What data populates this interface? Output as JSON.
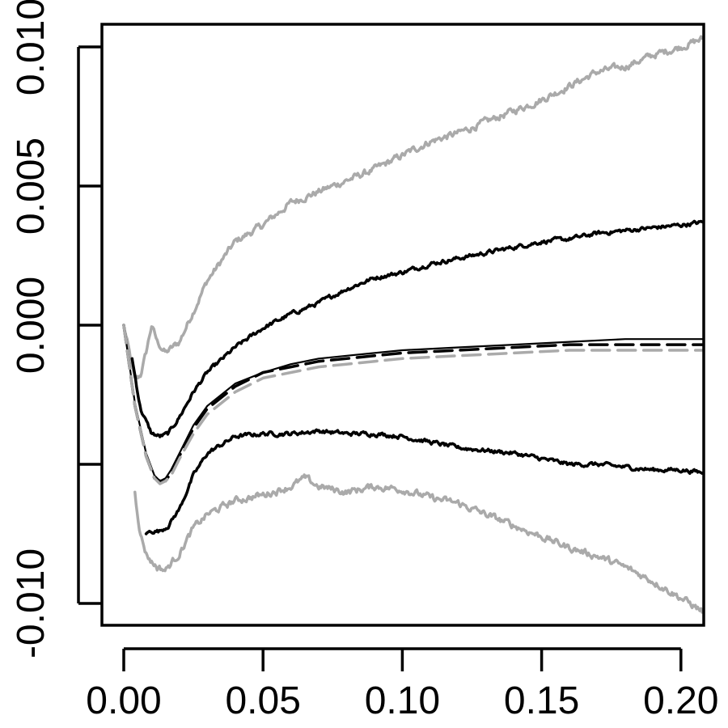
{
  "chart_data": {
    "type": "line",
    "title": "",
    "xlabel": "",
    "ylabel": "",
    "xlim": [
      -0.008,
      0.208
    ],
    "ylim": [
      -0.0108,
      0.0108
    ],
    "grid": false,
    "legend": "none",
    "x_ticks": [
      {
        "value": 0.0,
        "label": "0.00"
      },
      {
        "value": 0.05,
        "label": "0.05"
      },
      {
        "value": 0.1,
        "label": "0.10"
      },
      {
        "value": 0.15,
        "label": "0.15"
      },
      {
        "value": 0.2,
        "label": "0.20"
      }
    ],
    "y_ticks": [
      {
        "value": -0.01,
        "label": "-0.010"
      },
      {
        "value": -0.005,
        "label": ""
      },
      {
        "value": 0.0,
        "label": "0.000"
      },
      {
        "value": 0.005,
        "label": "0.005"
      },
      {
        "value": 0.01,
        "label": "0.010"
      }
    ],
    "series": [
      {
        "style": "solid",
        "color": "#aaaaaa",
        "width": 3.5,
        "noise": 0.0002,
        "x": [
          0.0,
          0.004,
          0.006,
          0.008,
          0.01,
          0.012,
          0.015,
          0.02,
          0.025,
          0.03,
          0.04,
          0.05,
          0.06,
          0.07,
          0.08,
          0.09,
          0.1,
          0.11,
          0.12,
          0.13,
          0.14,
          0.15,
          0.16,
          0.17,
          0.18,
          0.19,
          0.2,
          0.208
        ],
        "y": [
          0.0,
          -0.002,
          -0.0018,
          -0.001,
          0.0,
          -0.0006,
          -0.001,
          -0.0006,
          0.0005,
          0.0016,
          0.003,
          0.0036,
          0.0044,
          0.0048,
          0.0052,
          0.0056,
          0.0061,
          0.0066,
          0.0069,
          0.0073,
          0.0077,
          0.0081,
          0.0086,
          0.0091,
          0.0093,
          0.0097,
          0.01,
          0.0103
        ]
      },
      {
        "style": "solid",
        "color": "#000000",
        "width": 3.5,
        "noise": 0.00012,
        "x": [
          0.003,
          0.006,
          0.01,
          0.013,
          0.016,
          0.02,
          0.025,
          0.03,
          0.04,
          0.05,
          0.06,
          0.07,
          0.08,
          0.09,
          0.1,
          0.11,
          0.12,
          0.13,
          0.14,
          0.15,
          0.16,
          0.17,
          0.18,
          0.19,
          0.2,
          0.208
        ],
        "y": [
          -0.0012,
          -0.003,
          -0.0039,
          -0.004,
          -0.0039,
          -0.0033,
          -0.0024,
          -0.0017,
          -0.0008,
          -0.0001,
          0.0004,
          0.0008,
          0.0013,
          0.0017,
          0.0019,
          0.0022,
          0.0024,
          0.0026,
          0.0028,
          0.003,
          0.0031,
          0.0033,
          0.0034,
          0.0035,
          0.0036,
          0.0037
        ]
      },
      {
        "style": "solid",
        "color": "#000000",
        "width": 3.5,
        "noise": 0.00012,
        "x": [
          0.008,
          0.01,
          0.013,
          0.016,
          0.02,
          0.025,
          0.03,
          0.04,
          0.05,
          0.06,
          0.07,
          0.08,
          0.09,
          0.1,
          0.11,
          0.12,
          0.13,
          0.14,
          0.15,
          0.16,
          0.17,
          0.18,
          0.19,
          0.2,
          0.208
        ],
        "y": [
          -0.0075,
          -0.0074,
          -0.0074,
          -0.0072,
          -0.0066,
          -0.0054,
          -0.0046,
          -0.004,
          -0.0039,
          -0.0039,
          -0.0038,
          -0.0039,
          -0.0039,
          -0.004,
          -0.0042,
          -0.0044,
          -0.0045,
          -0.0046,
          -0.0048,
          -0.005,
          -0.005,
          -0.0051,
          -0.0052,
          -0.0052,
          -0.0053
        ]
      },
      {
        "style": "solid",
        "color": "#aaaaaa",
        "width": 3.5,
        "noise": 0.0002,
        "x": [
          0.004,
          0.006,
          0.008,
          0.01,
          0.012,
          0.015,
          0.02,
          0.025,
          0.03,
          0.04,
          0.05,
          0.06,
          0.065,
          0.07,
          0.08,
          0.09,
          0.1,
          0.11,
          0.12,
          0.13,
          0.14,
          0.15,
          0.16,
          0.17,
          0.18,
          0.19,
          0.2,
          0.208
        ],
        "y": [
          -0.006,
          -0.0075,
          -0.0082,
          -0.0085,
          -0.0087,
          -0.0088,
          -0.0082,
          -0.0073,
          -0.0068,
          -0.0063,
          -0.0061,
          -0.0058,
          -0.0055,
          -0.0058,
          -0.006,
          -0.0058,
          -0.0059,
          -0.0062,
          -0.0064,
          -0.0068,
          -0.0072,
          -0.0076,
          -0.008,
          -0.0083,
          -0.0087,
          -0.0092,
          -0.0098,
          -0.0103
        ]
      },
      {
        "style": "solid",
        "color": "#000000",
        "width": 2.2,
        "noise": 0,
        "x": [
          0.0,
          0.004,
          0.008,
          0.011,
          0.013,
          0.015,
          0.017,
          0.02,
          0.025,
          0.03,
          0.04,
          0.05,
          0.06,
          0.07,
          0.08,
          0.09,
          0.1,
          0.12,
          0.14,
          0.16,
          0.18,
          0.2,
          0.208
        ],
        "y": [
          0.0,
          -0.0028,
          -0.0046,
          -0.0054,
          -0.0056,
          -0.0055,
          -0.0052,
          -0.0046,
          -0.0036,
          -0.0029,
          -0.0021,
          -0.0017,
          -0.0014,
          -0.0012,
          -0.0011,
          -0.001,
          -0.0009,
          -0.0008,
          -0.0007,
          -0.0006,
          -0.0005,
          -0.0005,
          -0.0005
        ]
      },
      {
        "style": "dashed",
        "color": "#000000",
        "width": 3.5,
        "noise": 0,
        "x": [
          0.0,
          0.004,
          0.008,
          0.011,
          0.013,
          0.015,
          0.017,
          0.02,
          0.025,
          0.03,
          0.04,
          0.05,
          0.06,
          0.07,
          0.08,
          0.09,
          0.1,
          0.12,
          0.14,
          0.16,
          0.18,
          0.2,
          0.208
        ],
        "y": [
          0.0,
          -0.0029,
          -0.0047,
          -0.0055,
          -0.0056,
          -0.0056,
          -0.0053,
          -0.0047,
          -0.0037,
          -0.003,
          -0.0022,
          -0.0017,
          -0.0015,
          -0.0013,
          -0.0012,
          -0.0011,
          -0.001,
          -0.0009,
          -0.0008,
          -0.0007,
          -0.0007,
          -0.0007,
          -0.0007
        ]
      },
      {
        "style": "dashed",
        "color": "#aaaaaa",
        "width": 3.5,
        "noise": 0,
        "x": [
          0.0,
          0.004,
          0.008,
          0.011,
          0.013,
          0.015,
          0.017,
          0.02,
          0.025,
          0.03,
          0.04,
          0.05,
          0.06,
          0.07,
          0.08,
          0.09,
          0.1,
          0.12,
          0.14,
          0.16,
          0.18,
          0.2,
          0.208
        ],
        "y": [
          0.0,
          -0.0029,
          -0.0047,
          -0.0055,
          -0.0057,
          -0.0056,
          -0.0054,
          -0.0048,
          -0.0039,
          -0.0032,
          -0.0024,
          -0.0019,
          -0.0017,
          -0.0015,
          -0.0014,
          -0.0013,
          -0.0012,
          -0.0011,
          -0.001,
          -0.0009,
          -0.0009,
          -0.0009,
          -0.0009
        ]
      }
    ]
  }
}
